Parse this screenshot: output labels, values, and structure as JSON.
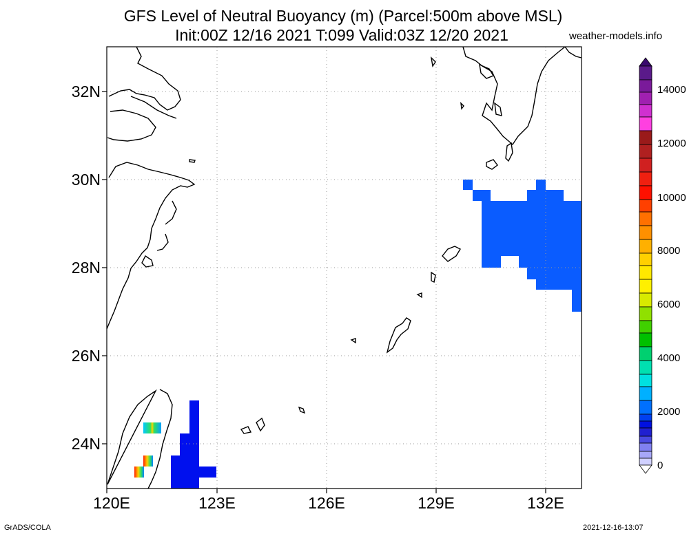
{
  "title_line1": "GFS Level of Neutral Buoyancy (m) (Parcel:500m above MSL)",
  "title_line2": "Init:00Z 12/16 2021 T:099 Valid:03Z 12/20 2021",
  "site": "weather-models.info",
  "footer_left": "GrADS/COLA",
  "footer_right": "2021-12-16-13:07",
  "lat_labels": [
    "32N",
    "30N",
    "28N",
    "26N",
    "24N"
  ],
  "lon_labels": [
    "120E",
    "123E",
    "126E",
    "129E",
    "132E"
  ],
  "colorbar": {
    "labels": [
      "14000",
      "12000",
      "10000",
      "8000",
      "6000",
      "4000",
      "2000",
      "0"
    ],
    "range": [
      0,
      15000
    ]
  }
}
